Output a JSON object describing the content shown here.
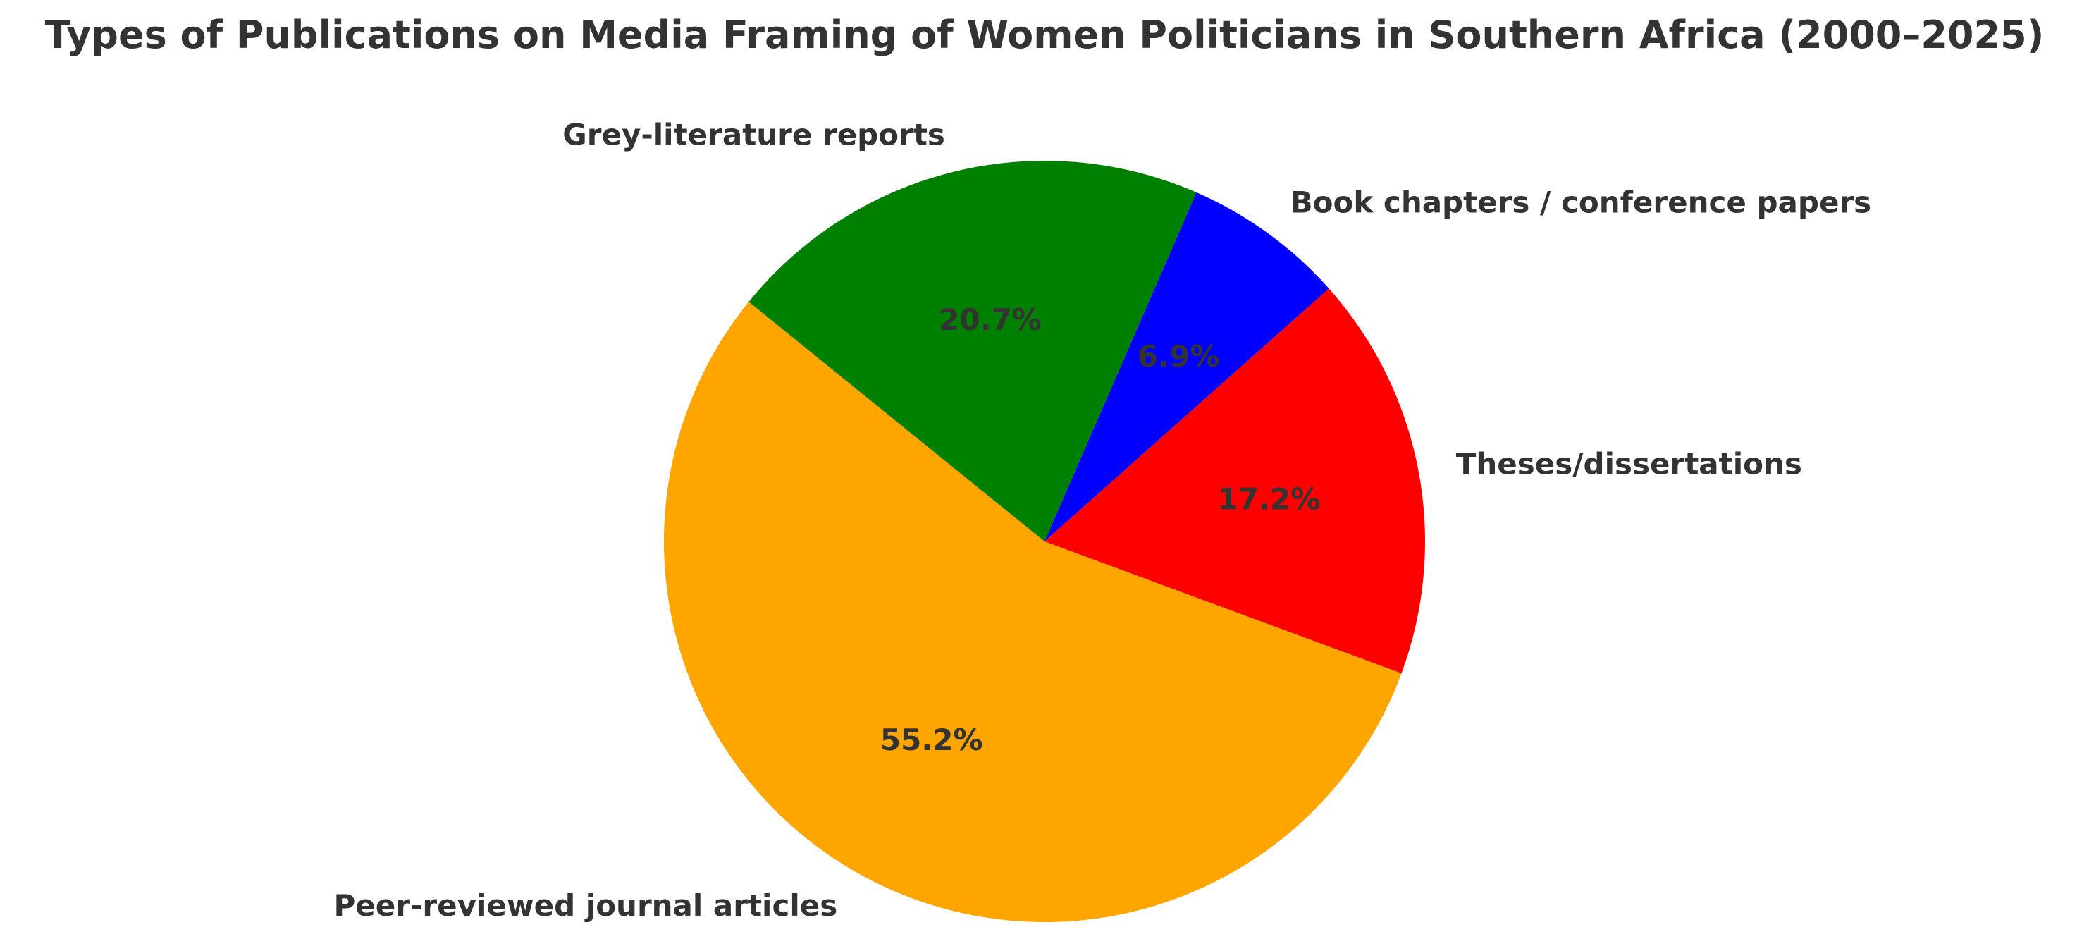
{
  "chart_data": {
    "type": "pie",
    "title": "Types of Publications on Media Framing of Women Politicians in Southern Africa (2000–2025)",
    "slices": [
      {
        "label": "Peer-reviewed journal articles",
        "value": 55.2,
        "pct_label": "55.2%",
        "color": "#FFA500"
      },
      {
        "label": "Theses/dissertations",
        "value": 17.2,
        "pct_label": "17.2%",
        "color": "#FF0000"
      },
      {
        "label": "Book chapters / conference papers",
        "value": 6.9,
        "pct_label": "6.9%",
        "color": "#0000FF"
      },
      {
        "label": "Grey-literature reports",
        "value": 20.7,
        "pct_label": "20.7%",
        "color": "#008000"
      }
    ],
    "start_angle_deg": 141,
    "direction": "counterclockwise",
    "legend": "none"
  }
}
